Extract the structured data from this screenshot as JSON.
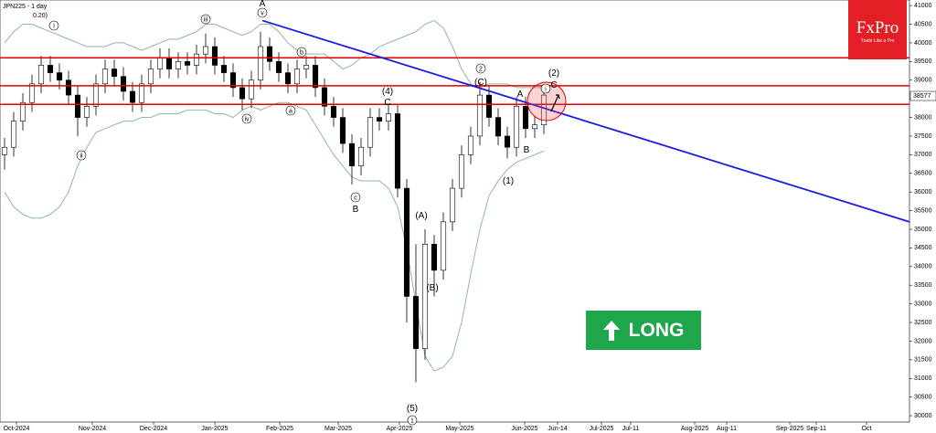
{
  "chart_data": {
    "type": "candlestick",
    "title": "JPN225 - 1 day",
    "subtitle": "0.20)",
    "x": [
      0.5,
      1.5,
      2.5,
      3.5,
      4.5,
      5.5,
      6.5,
      7.5,
      8.5,
      9.5,
      10.5,
      11.5,
      12.5,
      13.5,
      14.5,
      15.5,
      16.5,
      17.5,
      18.5,
      19.5,
      20.5,
      21.5,
      22.5,
      23.5,
      24.5,
      25.5,
      26.5,
      27.5,
      28.5,
      29.5,
      30.5,
      31.5,
      32.5,
      33.5,
      34.5,
      35.5,
      36.5,
      37.5,
      38.5,
      39.5,
      40.5,
      41.5,
      42.5,
      43.5,
      44.5,
      45.5,
      46.5,
      47.5,
      48.5,
      49.5,
      50.5,
      51.5,
      52.5,
      53.5,
      54.5,
      55.5,
      56.5,
      57.5,
      58.5,
      59.5
    ],
    "open": [
      37000,
      37200,
      37900,
      38400,
      38900,
      39400,
      39200,
      39000,
      38600,
      38000,
      38300,
      38900,
      39300,
      39100,
      38700,
      38400,
      38900,
      39300,
      39600,
      39300,
      39500,
      39400,
      39700,
      39900,
      39400,
      39200,
      38800,
      38500,
      39000,
      39900,
      39500,
      39200,
      38900,
      39300,
      39400,
      38800,
      38300,
      38000,
      37300,
      36700,
      37200,
      38000,
      37900,
      38100,
      36100,
      33200,
      31800,
      34600,
      33900,
      35200,
      36100,
      37000,
      37500,
      38600,
      38000,
      37500,
      37200,
      38300,
      37700,
      37800
    ],
    "high": [
      37450,
      38150,
      38650,
      39150,
      39650,
      39650,
      39450,
      39250,
      38850,
      38550,
      39150,
      39550,
      39550,
      39350,
      38950,
      39150,
      39550,
      39850,
      39850,
      39750,
      39750,
      39950,
      40250,
      40150,
      39650,
      39450,
      39050,
      39250,
      40300,
      40150,
      39750,
      39450,
      39550,
      39650,
      39650,
      39050,
      38550,
      38250,
      37550,
      37450,
      38250,
      38250,
      38350,
      38350,
      36350,
      34600,
      35000,
      34850,
      35450,
      36350,
      37250,
      37750,
      38950,
      38850,
      38250,
      37750,
      38550,
      38550,
      38050,
      38800
    ],
    "low": [
      36600,
      36950,
      37650,
      38150,
      38650,
      38950,
      38750,
      38350,
      37500,
      37750,
      38050,
      38650,
      38850,
      38450,
      38150,
      38150,
      38650,
      39050,
      39050,
      39050,
      39150,
      39150,
      39450,
      39150,
      38950,
      38550,
      38200,
      38250,
      38750,
      39250,
      38950,
      38650,
      38650,
      39050,
      38550,
      38050,
      37750,
      37050,
      36200,
      36450,
      36950,
      37650,
      37650,
      35850,
      32500,
      30900,
      31500,
      33200,
      33650,
      34950,
      35850,
      36750,
      37250,
      37750,
      37250,
      36900,
      36950,
      37450,
      37450,
      37550
    ],
    "close": [
      37200,
      37900,
      38400,
      38900,
      39400,
      39200,
      39000,
      38600,
      38000,
      38300,
      38900,
      39300,
      39100,
      38700,
      38400,
      38900,
      39300,
      39600,
      39300,
      39500,
      39400,
      39700,
      39900,
      39400,
      39200,
      38800,
      38500,
      39000,
      39900,
      39500,
      39200,
      38900,
      39300,
      39400,
      38800,
      38300,
      38000,
      37300,
      36700,
      37200,
      38000,
      37900,
      38100,
      36100,
      33200,
      31800,
      34600,
      33900,
      35200,
      36100,
      37000,
      37500,
      38600,
      38000,
      37500,
      37200,
      38300,
      37700,
      37800,
      38600
    ],
    "up_color": "#ffffff",
    "down_color": "#000000",
    "bands": [
      {
        "color": "#8fb8a0",
        "values": [
          40000,
          40300,
          40500,
          40500,
          40400,
          40300,
          40200,
          40100,
          40000,
          39900,
          39900,
          39900,
          40000,
          40000,
          39900,
          39800,
          39900,
          40000,
          40100,
          40100,
          40200,
          40300,
          40500,
          40500,
          40400,
          40300,
          40200,
          40300,
          40500,
          40500,
          40300,
          40000,
          39800,
          39700,
          39700,
          39700,
          39500,
          39300,
          39400,
          39600,
          39700,
          39900,
          40000,
          40100,
          40200,
          40300,
          40500,
          40600,
          40400,
          39900,
          39300,
          38900,
          38800,
          38900,
          38900,
          38900,
          38800,
          38800,
          38800,
          38800
        ]
      },
      {
        "color": "#8fb8a0",
        "values": [
          36000,
          35600,
          35400,
          35300,
          35300,
          35400,
          35600,
          36000,
          36700,
          37200,
          37600,
          37700,
          37800,
          37900,
          37900,
          38000,
          38000,
          38100,
          38100,
          38100,
          38200,
          38200,
          38200,
          38100,
          38100,
          38000,
          38200,
          38300,
          38200,
          38300,
          38400,
          38400,
          38300,
          38200,
          37800,
          37400,
          37000,
          36700,
          36400,
          36300,
          36300,
          36300,
          36100,
          35600,
          34500,
          33000,
          31600,
          31200,
          31300,
          31600,
          32500,
          33800,
          35000,
          35900,
          36300,
          36600,
          36800,
          36900,
          37000,
          37100
        ]
      }
    ],
    "levels": [
      39600,
      38850,
      38350
    ],
    "levels_color": "#e00000",
    "trendline": {
      "x": [
        28.7,
        99.5
      ],
      "y": [
        40600,
        35200
      ],
      "color": "#1a1ae6"
    },
    "last_price": 38577,
    "xlim": [
      0,
      99.5
    ],
    "ylim": [
      29830,
      41150
    ],
    "xticks": [
      {
        "value": 1.8,
        "label": "Oct-2024"
      },
      {
        "value": 10.1,
        "label": "Nov-2024"
      },
      {
        "value": 16.8,
        "label": "Dec-2024"
      },
      {
        "value": 23.5,
        "label": "Jan-2025"
      },
      {
        "value": 30.6,
        "label": "Feb-2025"
      },
      {
        "value": 37.0,
        "label": "Mar-2025"
      },
      {
        "value": 43.7,
        "label": "Apr-2025"
      },
      {
        "value": 50.3,
        "label": "May-2025"
      },
      {
        "value": 57.4,
        "label": "Jun-2025"
      },
      {
        "value": 61.0,
        "label": "Jun-14"
      },
      {
        "value": 65.8,
        "label": "Jul-2025"
      },
      {
        "value": 69.0,
        "label": "Jul-11"
      },
      {
        "value": 76.0,
        "label": "Aug-2025"
      },
      {
        "value": 79.5,
        "label": "Aug-11"
      },
      {
        "value": 86.4,
        "label": "Sep-2025"
      },
      {
        "value": 89.3,
        "label": "Sep-11"
      },
      {
        "value": 94.8,
        "label": "Oct"
      }
    ],
    "yticks": [
      30000,
      30500,
      31000,
      31500,
      32000,
      32500,
      33000,
      33500,
      34000,
      34500,
      35000,
      35500,
      36000,
      36500,
      37000,
      37500,
      38000,
      38500,
      39000,
      39500,
      40000,
      40500,
      41000
    ],
    "annotations": [
      "i",
      "ii",
      "iii",
      "iv",
      "A",
      "v",
      "a",
      "b",
      "c",
      "B",
      "(4)",
      "C",
      "(A)",
      "(B)",
      "(5)",
      "1",
      "2",
      "(C)",
      "A",
      "(1)",
      "B",
      "i",
      "(2)",
      "C"
    ]
  },
  "logo": {
    "brand": "FxPro",
    "tagline": "Trade Like a Pro"
  },
  "signal": "LONG"
}
